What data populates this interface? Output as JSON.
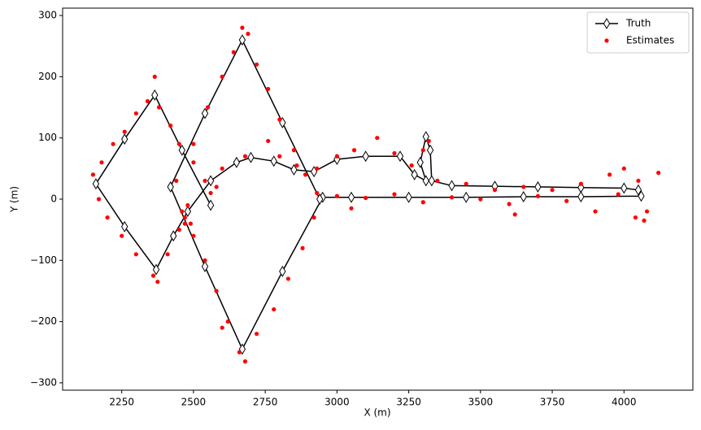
{
  "chart_data": {
    "type": "scatter",
    "x_label": "X (m)",
    "y_label": "Y (m)",
    "xlim": [
      2044,
      4240
    ],
    "ylim": [
      -312,
      312
    ],
    "xticks": [
      2250,
      2500,
      2750,
      3000,
      3250,
      3500,
      3750,
      4000
    ],
    "yticks": [
      {
        "value": -300,
        "label": "−300"
      },
      {
        "value": -200,
        "label": "−200"
      },
      {
        "value": -100,
        "label": "−100"
      },
      0,
      100,
      200,
      300
    ],
    "grid": false,
    "legend": "upper right",
    "series": [
      {
        "name": "Truth",
        "color": "#000000",
        "style": "line-diamond",
        "x": [
          2560,
          2460,
          2365,
          2260,
          2160,
          2260,
          2370,
          2430,
          2480,
          2560,
          2650,
          2700,
          2780,
          2850,
          2920,
          3000,
          3100,
          3220,
          3270,
          3310,
          3290,
          3310,
          3325,
          3330,
          3400,
          3550,
          3700,
          3850,
          4000,
          4050,
          4060,
          3850,
          3650,
          3450,
          3250,
          3050,
          2950,
          2810,
          2670,
          2540,
          2420,
          2540,
          2670,
          2810,
          2940
        ],
        "values": [
          -10,
          80,
          170,
          98,
          25,
          -45,
          -115,
          -60,
          -20,
          30,
          60,
          68,
          62,
          48,
          45,
          65,
          70,
          70,
          40,
          30,
          60,
          102,
          80,
          30,
          22,
          21,
          20,
          19,
          18,
          15,
          5,
          4,
          4,
          3,
          3,
          3,
          3,
          -118,
          -245,
          -110,
          20,
          140,
          260,
          125,
          0
        ]
      },
      {
        "name": "Estimates",
        "color": "#ff0000",
        "style": "dot",
        "x": [
          2150,
          2180,
          2220,
          2260,
          2300,
          2340,
          2365,
          2380,
          2420,
          2450,
          2500,
          2540,
          2170,
          2200,
          2250,
          2300,
          2360,
          2375,
          2410,
          2450,
          2470,
          2490,
          2460,
          2480,
          2440,
          2500,
          2550,
          2600,
          2640,
          2670,
          2690,
          2720,
          2760,
          2800,
          2850,
          2890,
          2930,
          2920,
          2880,
          2830,
          2780,
          2720,
          2680,
          2660,
          2620,
          2580,
          2540,
          2500,
          2470,
          2600,
          2560,
          2580,
          2600,
          2680,
          2760,
          2800,
          2860,
          2930,
          3000,
          3060,
          3140,
          3200,
          3260,
          3300,
          3320,
          3350,
          3450,
          3550,
          3650,
          3750,
          3850,
          3950,
          4000,
          4050,
          4080,
          4070,
          4120,
          4040,
          3000,
          3100,
          3200,
          3300,
          3400,
          3500,
          3600,
          3700,
          3800,
          3900,
          3980,
          3050,
          3620
        ],
        "values": [
          40,
          60,
          90,
          110,
          140,
          160,
          200,
          150,
          120,
          90,
          60,
          30,
          0,
          -30,
          -60,
          -90,
          -125,
          -135,
          -90,
          -50,
          -30,
          -40,
          -20,
          -10,
          30,
          90,
          150,
          200,
          240,
          280,
          270,
          220,
          180,
          130,
          80,
          40,
          10,
          -30,
          -80,
          -130,
          -180,
          -220,
          -265,
          -250,
          -200,
          -150,
          -100,
          -60,
          -40,
          -210,
          10,
          20,
          50,
          70,
          95,
          70,
          55,
          50,
          70,
          80,
          100,
          75,
          55,
          80,
          95,
          30,
          25,
          15,
          20,
          15,
          25,
          40,
          50,
          30,
          -20,
          -35,
          43,
          -30,
          5,
          2,
          8,
          -5,
          3,
          0,
          -8,
          5,
          -3,
          -20,
          8,
          -15,
          -25
        ]
      }
    ]
  }
}
